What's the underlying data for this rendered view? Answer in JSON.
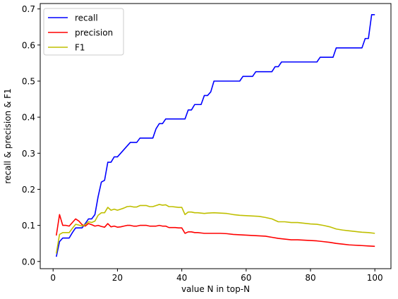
{
  "chart_data": {
    "type": "line",
    "title": "",
    "xlabel": "value N in top-N",
    "ylabel": "recall & precision & F1",
    "xlim": [
      -4,
      105
    ],
    "ylim": [
      -0.02,
      0.715
    ],
    "xticks": [
      0,
      20,
      40,
      60,
      80,
      100
    ],
    "xtick_labels": [
      "0",
      "20",
      "40",
      "60",
      "80",
      "100"
    ],
    "yticks": [
      0.0,
      0.1,
      0.2,
      0.3,
      0.4,
      0.5,
      0.6,
      0.7
    ],
    "ytick_labels": [
      "0.0",
      "0.1",
      "0.2",
      "0.3",
      "0.4",
      "0.5",
      "0.6",
      "0.7"
    ],
    "grid": false,
    "legend_position": "upper-left",
    "series": [
      {
        "name": "recall",
        "color": "#0000ff",
        "points": [
          [
            1,
            0.013
          ],
          [
            2,
            0.055
          ],
          [
            3,
            0.065
          ],
          [
            4,
            0.065
          ],
          [
            5,
            0.065
          ],
          [
            6,
            0.08
          ],
          [
            7,
            0.093
          ],
          [
            8,
            0.093
          ],
          [
            9,
            0.093
          ],
          [
            10,
            0.105
          ],
          [
            11,
            0.118
          ],
          [
            12,
            0.118
          ],
          [
            13,
            0.13
          ],
          [
            14,
            0.18
          ],
          [
            15,
            0.22
          ],
          [
            16,
            0.225
          ],
          [
            17,
            0.275
          ],
          [
            18,
            0.275
          ],
          [
            19,
            0.29
          ],
          [
            20,
            0.29
          ],
          [
            21,
            0.3
          ],
          [
            22,
            0.31
          ],
          [
            23,
            0.32
          ],
          [
            24,
            0.33
          ],
          [
            25,
            0.33
          ],
          [
            26,
            0.33
          ],
          [
            27,
            0.342
          ],
          [
            28,
            0.342
          ],
          [
            29,
            0.342
          ],
          [
            30,
            0.342
          ],
          [
            31,
            0.342
          ],
          [
            32,
            0.368
          ],
          [
            33,
            0.382
          ],
          [
            34,
            0.382
          ],
          [
            35,
            0.395
          ],
          [
            36,
            0.395
          ],
          [
            37,
            0.395
          ],
          [
            38,
            0.395
          ],
          [
            39,
            0.395
          ],
          [
            40,
            0.395
          ],
          [
            41,
            0.395
          ],
          [
            42,
            0.42
          ],
          [
            43,
            0.42
          ],
          [
            44,
            0.435
          ],
          [
            45,
            0.435
          ],
          [
            46,
            0.435
          ],
          [
            47,
            0.46
          ],
          [
            48,
            0.46
          ],
          [
            49,
            0.47
          ],
          [
            50,
            0.5
          ],
          [
            51,
            0.5
          ],
          [
            55,
            0.5
          ],
          [
            56,
            0.5
          ],
          [
            57,
            0.5
          ],
          [
            58,
            0.5
          ],
          [
            59,
            0.513
          ],
          [
            60,
            0.513
          ],
          [
            61,
            0.513
          ],
          [
            62,
            0.513
          ],
          [
            63,
            0.526
          ],
          [
            64,
            0.526
          ],
          [
            68,
            0.526
          ],
          [
            69,
            0.54
          ],
          [
            70,
            0.54
          ],
          [
            71,
            0.553
          ],
          [
            72,
            0.553
          ],
          [
            80,
            0.553
          ],
          [
            82,
            0.553
          ],
          [
            83,
            0.566
          ],
          [
            86,
            0.566
          ],
          [
            87,
            0.566
          ],
          [
            88,
            0.592
          ],
          [
            95,
            0.592
          ],
          [
            96,
            0.592
          ],
          [
            97,
            0.618
          ],
          [
            98,
            0.618
          ],
          [
            99,
            0.684
          ],
          [
            100,
            0.684
          ]
        ]
      },
      {
        "name": "precision",
        "color": "#ff0000",
        "points": [
          [
            1,
            0.072
          ],
          [
            2,
            0.13
          ],
          [
            3,
            0.1
          ],
          [
            4,
            0.1
          ],
          [
            5,
            0.098
          ],
          [
            6,
            0.108
          ],
          [
            7,
            0.118
          ],
          [
            8,
            0.112
          ],
          [
            9,
            0.102
          ],
          [
            10,
            0.098
          ],
          [
            11,
            0.105
          ],
          [
            12,
            0.102
          ],
          [
            13,
            0.098
          ],
          [
            14,
            0.1
          ],
          [
            15,
            0.097
          ],
          [
            16,
            0.095
          ],
          [
            17,
            0.105
          ],
          [
            18,
            0.096
          ],
          [
            19,
            0.098
          ],
          [
            20,
            0.095
          ],
          [
            21,
            0.096
          ],
          [
            22,
            0.098
          ],
          [
            23,
            0.1
          ],
          [
            24,
            0.1
          ],
          [
            25,
            0.098
          ],
          [
            26,
            0.098
          ],
          [
            27,
            0.1
          ],
          [
            28,
            0.1
          ],
          [
            29,
            0.1
          ],
          [
            30,
            0.098
          ],
          [
            31,
            0.098
          ],
          [
            32,
            0.098
          ],
          [
            33,
            0.1
          ],
          [
            34,
            0.098
          ],
          [
            35,
            0.098
          ],
          [
            36,
            0.094
          ],
          [
            37,
            0.094
          ],
          [
            38,
            0.094
          ],
          [
            39,
            0.093
          ],
          [
            40,
            0.093
          ],
          [
            41,
            0.078
          ],
          [
            42,
            0.082
          ],
          [
            43,
            0.082
          ],
          [
            44,
            0.08
          ],
          [
            45,
            0.08
          ],
          [
            46,
            0.079
          ],
          [
            47,
            0.078
          ],
          [
            48,
            0.078
          ],
          [
            50,
            0.078
          ],
          [
            52,
            0.078
          ],
          [
            54,
            0.077
          ],
          [
            56,
            0.075
          ],
          [
            58,
            0.074
          ],
          [
            60,
            0.073
          ],
          [
            62,
            0.072
          ],
          [
            64,
            0.071
          ],
          [
            66,
            0.07
          ],
          [
            68,
            0.067
          ],
          [
            70,
            0.064
          ],
          [
            72,
            0.062
          ],
          [
            74,
            0.06
          ],
          [
            76,
            0.06
          ],
          [
            78,
            0.059
          ],
          [
            80,
            0.058
          ],
          [
            82,
            0.057
          ],
          [
            84,
            0.055
          ],
          [
            86,
            0.053
          ],
          [
            88,
            0.05
          ],
          [
            90,
            0.048
          ],
          [
            92,
            0.046
          ],
          [
            94,
            0.045
          ],
          [
            96,
            0.044
          ],
          [
            98,
            0.043
          ],
          [
            100,
            0.042
          ]
        ]
      },
      {
        "name": "F1",
        "color": "#bfbf00",
        "points": [
          [
            1,
            0.022
          ],
          [
            2,
            0.075
          ],
          [
            3,
            0.08
          ],
          [
            4,
            0.08
          ],
          [
            5,
            0.08
          ],
          [
            6,
            0.092
          ],
          [
            7,
            0.103
          ],
          [
            8,
            0.101
          ],
          [
            9,
            0.098
          ],
          [
            10,
            0.102
          ],
          [
            11,
            0.11
          ],
          [
            12,
            0.108
          ],
          [
            13,
            0.112
          ],
          [
            14,
            0.128
          ],
          [
            15,
            0.135
          ],
          [
            16,
            0.135
          ],
          [
            17,
            0.15
          ],
          [
            18,
            0.142
          ],
          [
            19,
            0.145
          ],
          [
            20,
            0.142
          ],
          [
            21,
            0.145
          ],
          [
            22,
            0.148
          ],
          [
            23,
            0.152
          ],
          [
            24,
            0.153
          ],
          [
            25,
            0.151
          ],
          [
            26,
            0.151
          ],
          [
            27,
            0.155
          ],
          [
            28,
            0.155
          ],
          [
            29,
            0.155
          ],
          [
            30,
            0.152
          ],
          [
            31,
            0.152
          ],
          [
            32,
            0.155
          ],
          [
            33,
            0.158
          ],
          [
            34,
            0.156
          ],
          [
            35,
            0.157
          ],
          [
            36,
            0.152
          ],
          [
            37,
            0.152
          ],
          [
            38,
            0.151
          ],
          [
            39,
            0.15
          ],
          [
            40,
            0.15
          ],
          [
            41,
            0.13
          ],
          [
            42,
            0.137
          ],
          [
            43,
            0.137
          ],
          [
            44,
            0.135
          ],
          [
            45,
            0.135
          ],
          [
            46,
            0.134
          ],
          [
            47,
            0.133
          ],
          [
            48,
            0.134
          ],
          [
            50,
            0.135
          ],
          [
            52,
            0.134
          ],
          [
            54,
            0.133
          ],
          [
            56,
            0.13
          ],
          [
            58,
            0.128
          ],
          [
            60,
            0.127
          ],
          [
            62,
            0.126
          ],
          [
            64,
            0.125
          ],
          [
            66,
            0.122
          ],
          [
            68,
            0.118
          ],
          [
            70,
            0.11
          ],
          [
            72,
            0.11
          ],
          [
            74,
            0.108
          ],
          [
            76,
            0.108
          ],
          [
            78,
            0.106
          ],
          [
            80,
            0.104
          ],
          [
            82,
            0.103
          ],
          [
            84,
            0.1
          ],
          [
            86,
            0.096
          ],
          [
            88,
            0.09
          ],
          [
            90,
            0.087
          ],
          [
            92,
            0.085
          ],
          [
            94,
            0.083
          ],
          [
            96,
            0.081
          ],
          [
            98,
            0.08
          ],
          [
            100,
            0.078
          ]
        ]
      }
    ]
  }
}
